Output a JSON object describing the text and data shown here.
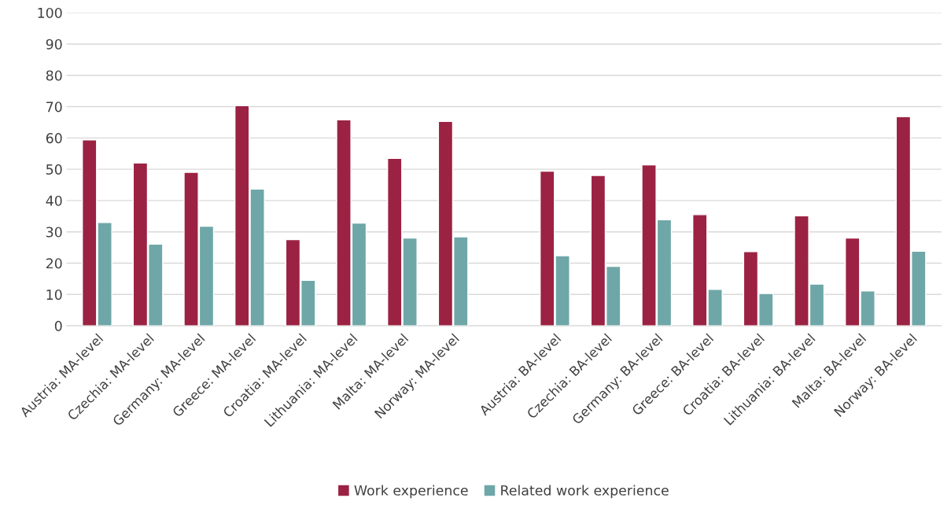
{
  "chart_data": {
    "type": "bar",
    "categories": [
      "Austria: MA-level",
      "Czechia: MA-level",
      "Germany: MA-level",
      "Greece: MA-level",
      "Croatia: MA-level",
      "Lithuania: MA-level",
      "Malta: MA-level",
      "Norway: MA-level",
      null,
      "Austria: BA-level",
      "Czechia: BA-level",
      "Germany: BA-level",
      "Greece: BA-level",
      "Croatia: BA-level",
      "Lithuania: BA-level",
      "Malta: BA-level",
      "Norway: BA-level"
    ],
    "series": [
      {
        "name": "Work experience",
        "color": "#9b2242",
        "values": [
          59.4,
          52,
          49,
          70.3,
          27.5,
          65.8,
          53.5,
          65.3,
          null,
          49.4,
          48,
          51.4,
          35.5,
          23.7,
          35.1,
          28,
          66.8
        ]
      },
      {
        "name": "Related work experience",
        "color": "#6fa7a8",
        "values": [
          33,
          26.1,
          31.8,
          43.7,
          14.5,
          32.8,
          28,
          28.4,
          null,
          22.4,
          19,
          33.9,
          11.6,
          10.3,
          13.3,
          11.1,
          23.8
        ]
      }
    ],
    "ylim": [
      0,
      100
    ],
    "yticks": [
      0,
      10,
      20,
      30,
      40,
      50,
      60,
      70,
      80,
      90,
      100
    ],
    "grid": "y",
    "legend": "bottom"
  }
}
